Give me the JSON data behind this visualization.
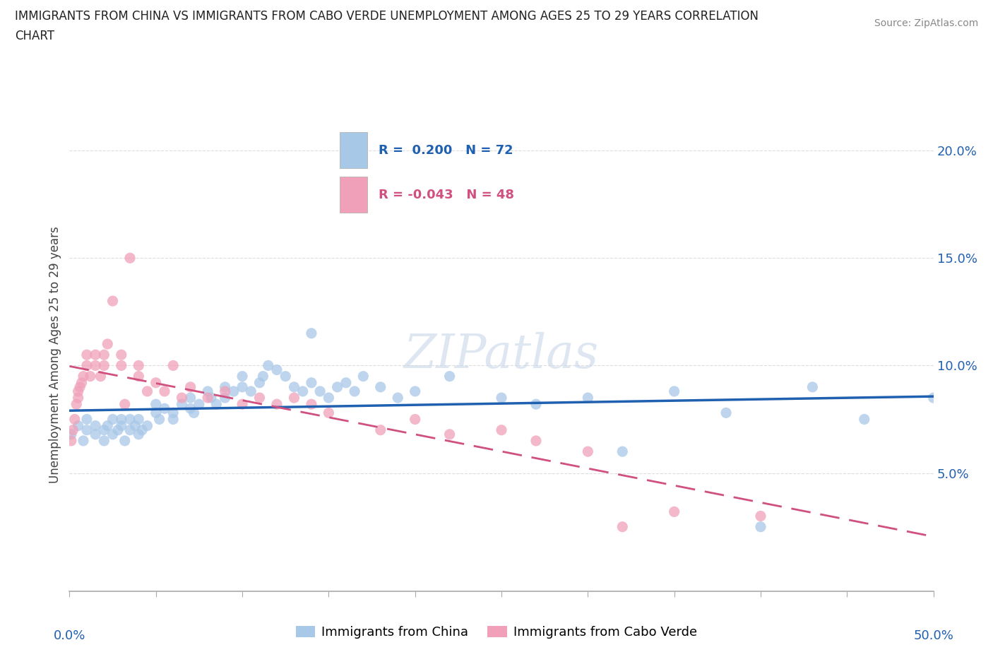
{
  "title": "IMMIGRANTS FROM CHINA VS IMMIGRANTS FROM CABO VERDE UNEMPLOYMENT AMONG AGES 25 TO 29 YEARS CORRELATION\nCHART",
  "source": "Source: ZipAtlas.com",
  "ylabel": "Unemployment Among Ages 25 to 29 years",
  "china_R": 0.2,
  "china_N": 72,
  "caboverde_R": -0.043,
  "caboverde_N": 48,
  "china_color": "#A8C8E8",
  "caboverde_color": "#F0A0B8",
  "china_line_color": "#2060B0",
  "caboverde_line_color": "#D05080",
  "watermark": "ZIPatlas",
  "xlim": [
    0.0,
    0.5
  ],
  "ylim": [
    -0.005,
    0.215
  ],
  "yticks": [
    0.05,
    0.1,
    0.15,
    0.2
  ],
  "ytick_labels": [
    "5.0%",
    "10.0%",
    "15.0%",
    "20.0%"
  ],
  "china_x": [
    0.001,
    0.005,
    0.008,
    0.01,
    0.01,
    0.015,
    0.015,
    0.02,
    0.02,
    0.022,
    0.025,
    0.025,
    0.028,
    0.03,
    0.03,
    0.032,
    0.035,
    0.035,
    0.038,
    0.04,
    0.04,
    0.042,
    0.045,
    0.05,
    0.05,
    0.052,
    0.055,
    0.06,
    0.06,
    0.065,
    0.07,
    0.07,
    0.072,
    0.075,
    0.08,
    0.082,
    0.085,
    0.09,
    0.09,
    0.095,
    0.1,
    0.1,
    0.105,
    0.11,
    0.112,
    0.115,
    0.12,
    0.125,
    0.13,
    0.135,
    0.14,
    0.14,
    0.145,
    0.15,
    0.155,
    0.16,
    0.165,
    0.17,
    0.18,
    0.19,
    0.2,
    0.22,
    0.25,
    0.27,
    0.3,
    0.32,
    0.35,
    0.38,
    0.4,
    0.43,
    0.46,
    0.5
  ],
  "china_y": [
    0.068,
    0.072,
    0.065,
    0.075,
    0.07,
    0.072,
    0.068,
    0.065,
    0.07,
    0.072,
    0.075,
    0.068,
    0.07,
    0.072,
    0.075,
    0.065,
    0.07,
    0.075,
    0.072,
    0.068,
    0.075,
    0.07,
    0.072,
    0.078,
    0.082,
    0.075,
    0.08,
    0.075,
    0.078,
    0.082,
    0.085,
    0.08,
    0.078,
    0.082,
    0.088,
    0.085,
    0.082,
    0.09,
    0.085,
    0.088,
    0.095,
    0.09,
    0.088,
    0.092,
    0.095,
    0.1,
    0.098,
    0.095,
    0.09,
    0.088,
    0.115,
    0.092,
    0.088,
    0.085,
    0.09,
    0.092,
    0.088,
    0.095,
    0.09,
    0.085,
    0.088,
    0.095,
    0.085,
    0.082,
    0.085,
    0.06,
    0.088,
    0.078,
    0.025,
    0.09,
    0.075,
    0.085
  ],
  "caboverde_x": [
    0.001,
    0.002,
    0.003,
    0.004,
    0.005,
    0.005,
    0.006,
    0.007,
    0.008,
    0.01,
    0.01,
    0.012,
    0.015,
    0.015,
    0.018,
    0.02,
    0.02,
    0.022,
    0.025,
    0.03,
    0.03,
    0.032,
    0.035,
    0.04,
    0.04,
    0.045,
    0.05,
    0.055,
    0.06,
    0.065,
    0.07,
    0.08,
    0.09,
    0.1,
    0.11,
    0.12,
    0.13,
    0.14,
    0.15,
    0.18,
    0.2,
    0.22,
    0.25,
    0.27,
    0.3,
    0.32,
    0.35,
    0.4
  ],
  "caboverde_y": [
    0.065,
    0.07,
    0.075,
    0.082,
    0.085,
    0.088,
    0.09,
    0.092,
    0.095,
    0.1,
    0.105,
    0.095,
    0.1,
    0.105,
    0.095,
    0.1,
    0.105,
    0.11,
    0.13,
    0.1,
    0.105,
    0.082,
    0.15,
    0.1,
    0.095,
    0.088,
    0.092,
    0.088,
    0.1,
    0.085,
    0.09,
    0.085,
    0.088,
    0.082,
    0.085,
    0.082,
    0.085,
    0.082,
    0.078,
    0.07,
    0.075,
    0.068,
    0.07,
    0.065,
    0.06,
    0.025,
    0.032,
    0.03
  ],
  "background_color": "#FFFFFF",
  "grid_color": "#DDDDDD"
}
